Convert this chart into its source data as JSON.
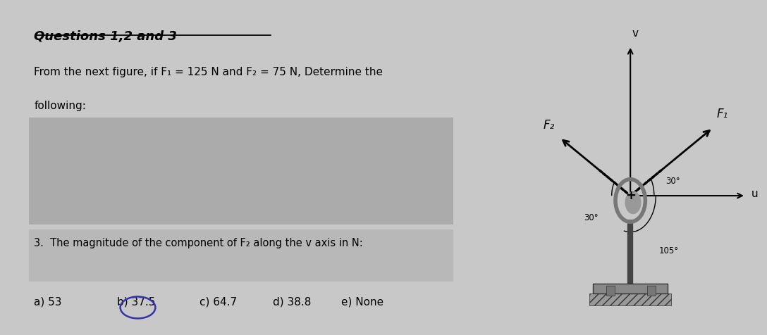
{
  "title": "Questions 1,2 and 3",
  "bg_left": "#d4d4d4",
  "bg_right": "#b8b8b4",
  "intro_line1": "From the next figure, if F₁ = 125 N and F₂ = 75 N, Determine the",
  "intro_line2": "following:",
  "q3_text": "3.  The magnitude of the component of F₂ along the v axis in N:",
  "answers": [
    "a) 53",
    "b) 37.5",
    "c) 64.7",
    "d) 38.8",
    "e) None"
  ],
  "circled_answer": 1,
  "v_label": "v",
  "u_label": "u",
  "F1_label": "F₁",
  "F2_label": "F₂",
  "angle_30_label": "30°",
  "angle_105_label": "105°",
  "rect1_color": "#ababab",
  "rect2_color": "#b8b8b8",
  "circle_color": "#3333aa",
  "text_color": "#000000",
  "arrow_color": "#000000",
  "diagram_bg": "#b8b8b4",
  "page_bg": "#c8c8c8"
}
